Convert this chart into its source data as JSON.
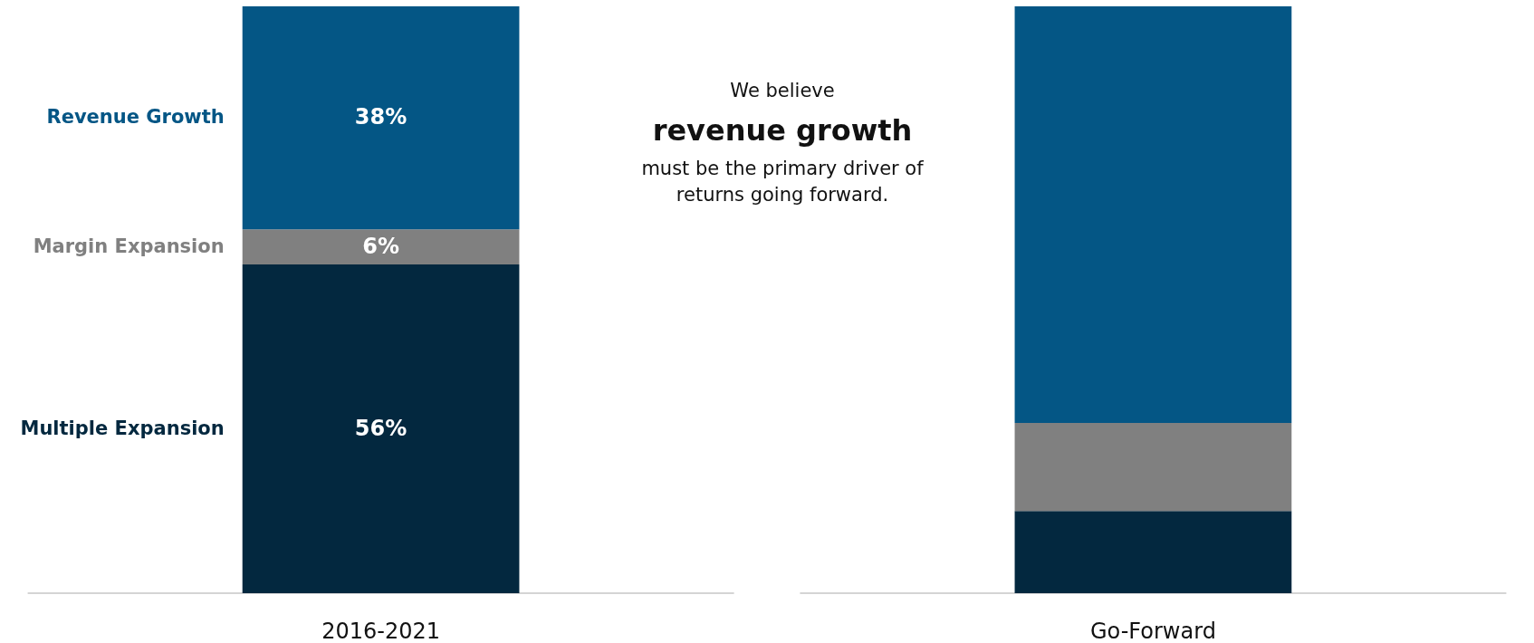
{
  "chart_data": {
    "type": "bar",
    "stacked": true,
    "categories": [
      "2016-2021",
      "Go-Forward"
    ],
    "series": [
      {
        "name": "Multiple Expansion",
        "color": "#03283f",
        "values": [
          56,
          14
        ],
        "value_labels": [
          "56%",
          null
        ]
      },
      {
        "name": "Margin Expansion",
        "color": "#808080",
        "values": [
          6,
          15
        ],
        "value_labels": [
          "6%",
          null
        ]
      },
      {
        "name": "Revenue Growth",
        "color": "#045685",
        "values": [
          38,
          71
        ],
        "value_labels": [
          "38%",
          null
        ]
      }
    ],
    "annotations": [
      "We believe",
      "revenue growth",
      "must be the primary driver of",
      "returns going forward."
    ]
  }
}
